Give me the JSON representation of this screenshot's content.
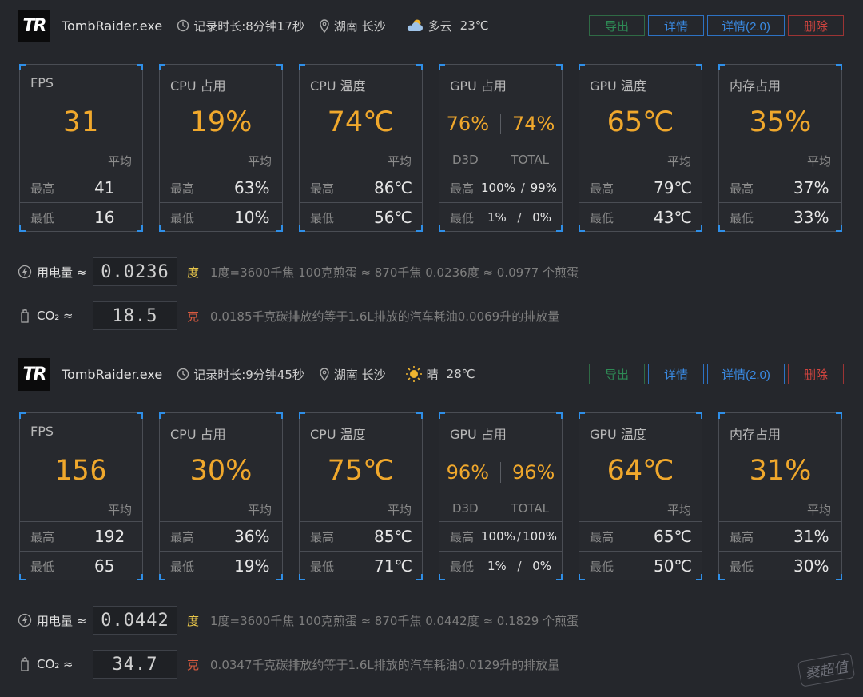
{
  "records": [
    {
      "logo": "TR",
      "exe": "TombRaider.exe",
      "duration": "记录时长:8分钟17秒",
      "location": "湖南 长沙",
      "weather": "多云",
      "weather_icon": "cloud-icon",
      "temp": "23℃",
      "buttons": {
        "export": "导出",
        "detail": "详情",
        "detail2": "详情(2.0)",
        "delete": "删除"
      },
      "cards": {
        "fps": {
          "title": "FPS",
          "value": "31",
          "avg": "平均",
          "max_label": "最高",
          "max": "41",
          "min_label": "最低",
          "min": "16"
        },
        "cpu_usage": {
          "title": "CPU 占用",
          "value": "19%",
          "avg": "平均",
          "max_label": "最高",
          "max": "63%",
          "min_label": "最低",
          "min": "10%"
        },
        "cpu_temp": {
          "title": "CPU 温度",
          "value": "74℃",
          "avg": "平均",
          "max_label": "最高",
          "max": "86℃",
          "min_label": "最低",
          "min": "56℃"
        },
        "gpu_usage": {
          "title": "GPU 占用",
          "d3d": "76%",
          "total": "74%",
          "d3d_label": "D3D",
          "total_label": "TOTAL",
          "max_label": "最高",
          "max_d3d": "100%",
          "max_total": "99%",
          "min_label": "最低",
          "min_d3d": "1%",
          "min_total": "0%",
          "sep": "/"
        },
        "gpu_temp": {
          "title": "GPU 温度",
          "value": "65℃",
          "avg": "平均",
          "max_label": "最高",
          "max": "79℃",
          "min_label": "最低",
          "min": "43℃"
        },
        "mem_usage": {
          "title": "内存占用",
          "value": "35%",
          "avg": "平均",
          "max_label": "最高",
          "max": "37%",
          "min_label": "最低",
          "min": "33%"
        }
      },
      "energy": {
        "label": "用电量 ≈",
        "value": "0.0236",
        "unit": "度",
        "desc": "1度=3600千焦    100克煎蛋 ≈ 870千焦    0.0236度 ≈ 0.0977 个煎蛋"
      },
      "co2": {
        "label": "CO₂ ≈",
        "value": "18.5",
        "unit": "克",
        "desc": "0.0185千克碳排放约等于1.6L排放的汽车耗油0.0069升的排放量"
      }
    },
    {
      "logo": "TR",
      "exe": "TombRaider.exe",
      "duration": "记录时长:9分钟45秒",
      "location": "湖南 长沙",
      "weather": "晴",
      "weather_icon": "sun-icon",
      "temp": "28℃",
      "buttons": {
        "export": "导出",
        "detail": "详情",
        "detail2": "详情(2.0)",
        "delete": "删除"
      },
      "cards": {
        "fps": {
          "title": "FPS",
          "value": "156",
          "avg": "平均",
          "max_label": "最高",
          "max": "192",
          "min_label": "最低",
          "min": "65"
        },
        "cpu_usage": {
          "title": "CPU 占用",
          "value": "30%",
          "avg": "平均",
          "max_label": "最高",
          "max": "36%",
          "min_label": "最低",
          "min": "19%"
        },
        "cpu_temp": {
          "title": "CPU 温度",
          "value": "75℃",
          "avg": "平均",
          "max_label": "最高",
          "max": "85℃",
          "min_label": "最低",
          "min": "71℃"
        },
        "gpu_usage": {
          "title": "GPU 占用",
          "d3d": "96%",
          "total": "96%",
          "d3d_label": "D3D",
          "total_label": "TOTAL",
          "max_label": "最高",
          "max_d3d": "100%",
          "max_total": "100%",
          "min_label": "最低",
          "min_d3d": "1%",
          "min_total": "0%",
          "sep": "/"
        },
        "gpu_temp": {
          "title": "GPU 温度",
          "value": "64℃",
          "avg": "平均",
          "max_label": "最高",
          "max": "65℃",
          "min_label": "最低",
          "min": "50℃"
        },
        "mem_usage": {
          "title": "内存占用",
          "value": "31%",
          "avg": "平均",
          "max_label": "最高",
          "max": "31%",
          "min_label": "最低",
          "min": "30%"
        }
      },
      "energy": {
        "label": "用电量 ≈",
        "value": "0.0442",
        "unit": "度",
        "desc": "1度=3600千焦    100克煎蛋 ≈ 870千焦    0.0442度 ≈ 0.1829 个煎蛋"
      },
      "co2": {
        "label": "CO₂ ≈",
        "value": "34.7",
        "unit": "克",
        "desc": "0.0347千克碳排放约等于1.6L排放的汽车耗油0.0129升的排放量"
      }
    }
  ],
  "watermark": "聚超值",
  "colors": {
    "accent": "#f0a82c",
    "corner": "#2f8fe8",
    "export": "#2e8b55",
    "detail": "#3a8be4",
    "delete": "#d0443f"
  }
}
